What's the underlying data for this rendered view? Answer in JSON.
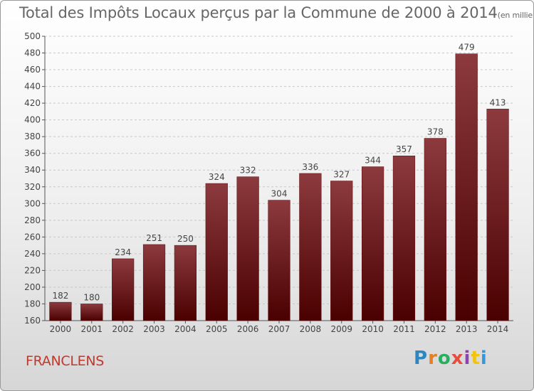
{
  "header": {
    "title": "Total des Impôts Locaux perçus par la Commune de 2000 à 2014",
    "unit": "(en milliers d'€)"
  },
  "footer": {
    "commune": "FRANCLENS",
    "commune_color": "#c0392b",
    "logo_letters": [
      {
        "char": "P",
        "color": "#2e86c1"
      },
      {
        "char": "r",
        "color": "#e67e22"
      },
      {
        "char": "o",
        "color": "#27ae60"
      },
      {
        "char": "x",
        "color": "#e74c3c"
      },
      {
        "char": "i",
        "color": "#8e44ad"
      },
      {
        "char": "t",
        "color": "#f1c40f"
      },
      {
        "char": "i",
        "color": "#3498db"
      }
    ]
  },
  "chart_data": {
    "type": "bar",
    "title": "Total des Impôts Locaux perçus par la Commune de 2000 à 2014",
    "categories": [
      "2000",
      "2001",
      "2002",
      "2003",
      "2004",
      "2005",
      "2006",
      "2007",
      "2008",
      "2009",
      "2010",
      "2011",
      "2012",
      "2013",
      "2014"
    ],
    "values": [
      182,
      180,
      234,
      251,
      250,
      324,
      332,
      304,
      336,
      327,
      344,
      357,
      378,
      479,
      413
    ],
    "ylim": [
      160,
      500
    ],
    "yticks": [
      160,
      180,
      200,
      220,
      240,
      260,
      280,
      300,
      320,
      340,
      360,
      380,
      400,
      420,
      440,
      460,
      480,
      500
    ],
    "grid": true,
    "bar_color_top": "#8c3a3e",
    "bar_color_bottom": "#4a0000",
    "xlabel": "",
    "ylabel": ""
  }
}
